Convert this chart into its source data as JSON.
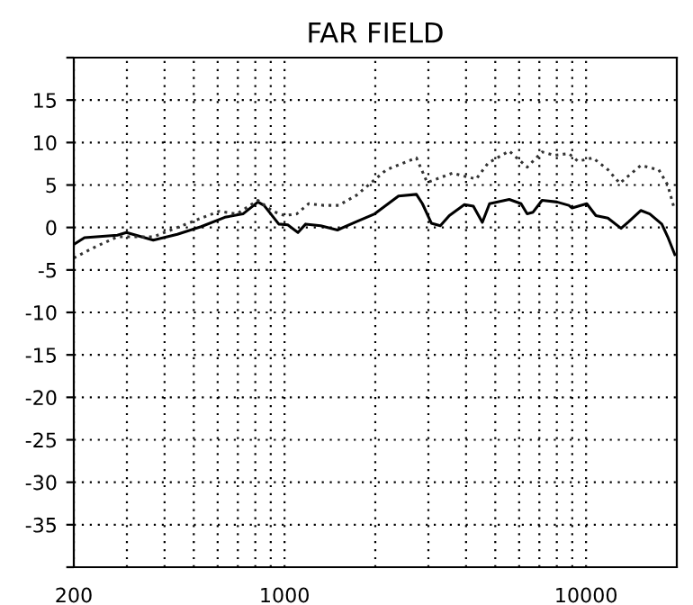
{
  "chart_data": {
    "type": "line",
    "title": "FAR FIELD",
    "log": "x",
    "grid": true,
    "xlim": [
      200,
      20000
    ],
    "ylim": [
      -40,
      20
    ],
    "xticks": [
      200,
      {
        "value": 300,
        "label": null
      },
      {
        "value": 400,
        "label": null
      },
      {
        "value": 500,
        "label": null
      },
      {
        "value": 600,
        "label": null
      },
      {
        "value": 700,
        "label": null
      },
      {
        "value": 800,
        "label": null
      },
      {
        "value": 900,
        "label": null
      },
      1000,
      {
        "value": 2000,
        "label": null
      },
      {
        "value": 3000,
        "label": null
      },
      {
        "value": 4000,
        "label": null
      },
      {
        "value": 5000,
        "label": null
      },
      {
        "value": 6000,
        "label": null
      },
      {
        "value": 7000,
        "label": null
      },
      {
        "value": 8000,
        "label": null
      },
      {
        "value": 9000,
        "label": null
      },
      10000
    ],
    "yticks": [
      {
        "value": -40,
        "label": null
      },
      -35,
      -30,
      -25,
      -20,
      -15,
      -10,
      -5,
      0,
      5,
      10,
      15,
      {
        "value": 20,
        "label": null
      }
    ],
    "series": [
      {
        "color": "#000000",
        "line_style": "solid",
        "x": [
          200,
          217,
          279,
          299,
          367,
          441,
          529,
          634,
          728,
          816,
          855,
          957,
          1025,
          1108,
          1175,
          1318,
          1498,
          1734,
          1990,
          2388,
          2738,
          2866,
          3069,
          3286,
          3519,
          3949,
          4229,
          4529,
          4786,
          5563,
          6088,
          6379,
          6672,
          7148,
          8010,
          8770,
          8988,
          10056,
          10782,
          11818,
          13066,
          13863,
          15190,
          16270,
          17832,
          18660,
          19700
        ],
        "values": [
          -2.0,
          -1.2,
          -0.9,
          -0.6,
          -1.5,
          -0.8,
          0.1,
          1.2,
          1.6,
          3.0,
          2.6,
          0.4,
          0.3,
          -0.6,
          0.4,
          0.2,
          -0.3,
          0.7,
          1.6,
          3.7,
          3.9,
          2.8,
          0.5,
          0.2,
          1.4,
          2.7,
          2.5,
          0.6,
          2.8,
          3.3,
          2.8,
          1.6,
          1.8,
          3.2,
          3.0,
          2.6,
          2.3,
          2.8,
          1.4,
          1.1,
          -0.1,
          0.7,
          2.0,
          1.6,
          0.4,
          -1.1,
          -3.2
        ]
      },
      {
        "color": "#333333",
        "line_style": "dotted",
        "x": [
          200,
          232,
          279,
          367,
          441,
          529,
          607,
          695,
          816,
          915,
          1003,
          1098,
          1203,
          1348,
          1512,
          1734,
          1899,
          2178,
          2738,
          2972,
          3606,
          4322,
          4738,
          5563,
          6379,
          7148,
          7834,
          8770,
          9400,
          10535,
          11818,
          12940,
          15190,
          17420,
          18660,
          19520
        ],
        "values": [
          -3.6,
          -2.4,
          -1.1,
          -1.1,
          0,
          1.1,
          1.9,
          1.6,
          3.2,
          1.9,
          1.4,
          1.6,
          2.8,
          2.6,
          2.6,
          3.8,
          5.0,
          6.8,
          8.2,
          5.3,
          6.4,
          5.7,
          7.6,
          9.0,
          7.1,
          8.9,
          8.5,
          8.7,
          7.8,
          8.2,
          6.8,
          5.2,
          7.3,
          6.8,
          5.0,
          2.5
        ]
      }
    ]
  }
}
